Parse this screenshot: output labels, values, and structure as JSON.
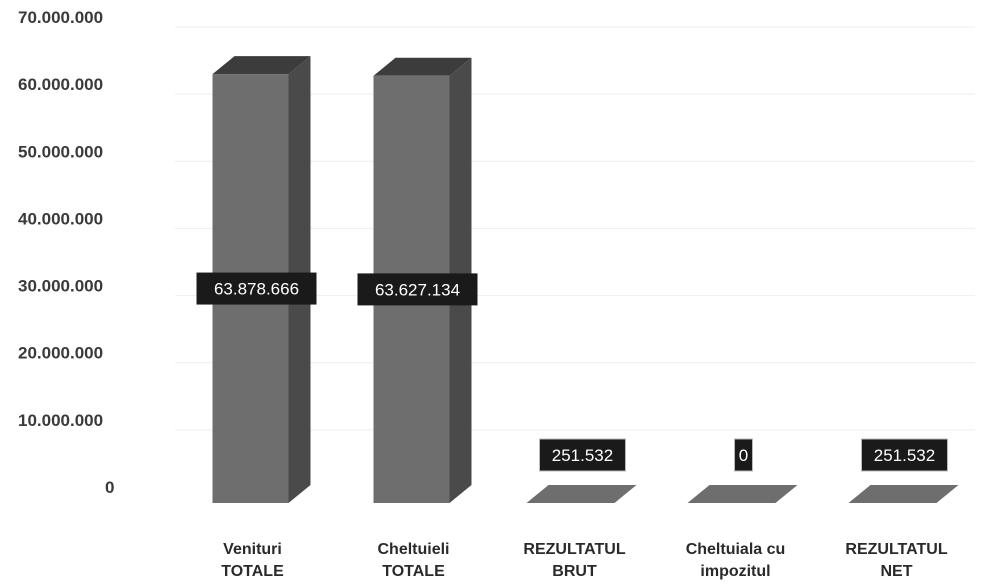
{
  "chart_data": {
    "type": "bar",
    "style": "3d-column",
    "categories": [
      [
        "Venituri",
        "TOTALE"
      ],
      [
        "Cheltuieli",
        "TOTALE"
      ],
      [
        "REZULTATUL",
        "BRUT"
      ],
      [
        "Cheltuiala cu",
        "impozitul"
      ],
      [
        "REZULTATUL",
        "NET"
      ]
    ],
    "values": [
      63878666,
      63627134,
      251532,
      0,
      251532
    ],
    "data_labels": [
      "63.878.666",
      "63.627.134",
      "251.532",
      "0",
      "251.532"
    ],
    "yticks": [
      "0",
      "10.000.000",
      "20.000.000",
      "30.000.000",
      "40.000.000",
      "50.000.000",
      "60.000.000",
      "70.000.000"
    ],
    "ylim": [
      0,
      70000000
    ],
    "title": "",
    "xlabel": "",
    "ylabel": "",
    "grid": true,
    "legend": "none",
    "colors": {
      "bar_front": "#6e6e6e",
      "bar_side": "#4a4a4a",
      "bar_top": "#3c3c3c",
      "label_bg": "#1a1a1a",
      "grid": "#eeeeee"
    }
  }
}
